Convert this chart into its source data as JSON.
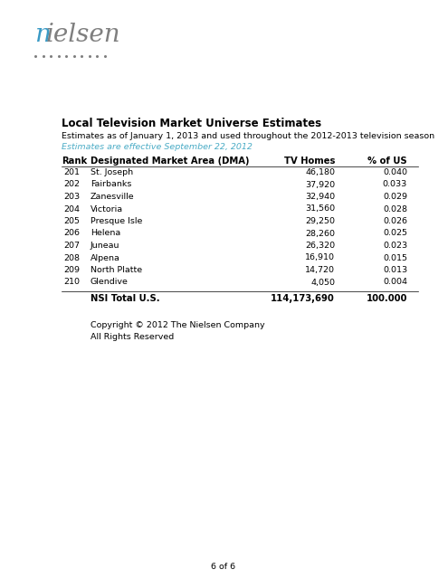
{
  "nielsen_blue": "#3A9AC5",
  "nielsen_gray": "#7F7F7F",
  "subtitle2_color": "#4BACC6",
  "title_bold": "Local Television Market Universe Estimates",
  "subtitle1": "Estimates as of January 1, 2013 and used throughout the 2012-2013 television season",
  "subtitle2": "Estimates are effective September 22, 2012",
  "col_headers": [
    "Rank",
    "Designated Market Area (DMA)",
    "TV Homes",
    "% of US"
  ],
  "rows": [
    [
      "201",
      "St. Joseph",
      "46,180",
      "0.040"
    ],
    [
      "202",
      "Fairbanks",
      "37,920",
      "0.033"
    ],
    [
      "203",
      "Zanesville",
      "32,940",
      "0.029"
    ],
    [
      "204",
      "Victoria",
      "31,560",
      "0.028"
    ],
    [
      "205",
      "Presque Isle",
      "29,250",
      "0.026"
    ],
    [
      "206",
      "Helena",
      "28,260",
      "0.025"
    ],
    [
      "207",
      "Juneau",
      "26,320",
      "0.023"
    ],
    [
      "208",
      "Alpena",
      "16,910",
      "0.015"
    ],
    [
      "209",
      "North Platte",
      "14,720",
      "0.013"
    ],
    [
      "210",
      "Glendive",
      "4,050",
      "0.004"
    ]
  ],
  "total_label": "NSI Total U.S.",
  "total_tvh": "114,173,690",
  "total_pct": "100.000",
  "footer1": "Copyright © 2012 The Nielsen Company",
  "footer2": "All Rights Reserved",
  "page_label": "6 of 6",
  "bg_color": "#ffffff",
  "text_color": "#000000",
  "num_dots": 10,
  "logo_fontsize": 20,
  "title_fontsize": 8.5,
  "sub1_fontsize": 6.8,
  "sub2_fontsize": 6.8,
  "header_fontsize": 7.2,
  "row_fontsize": 6.8,
  "total_fontsize": 7.2,
  "footer_fontsize": 6.8,
  "page_fontsize": 6.8
}
